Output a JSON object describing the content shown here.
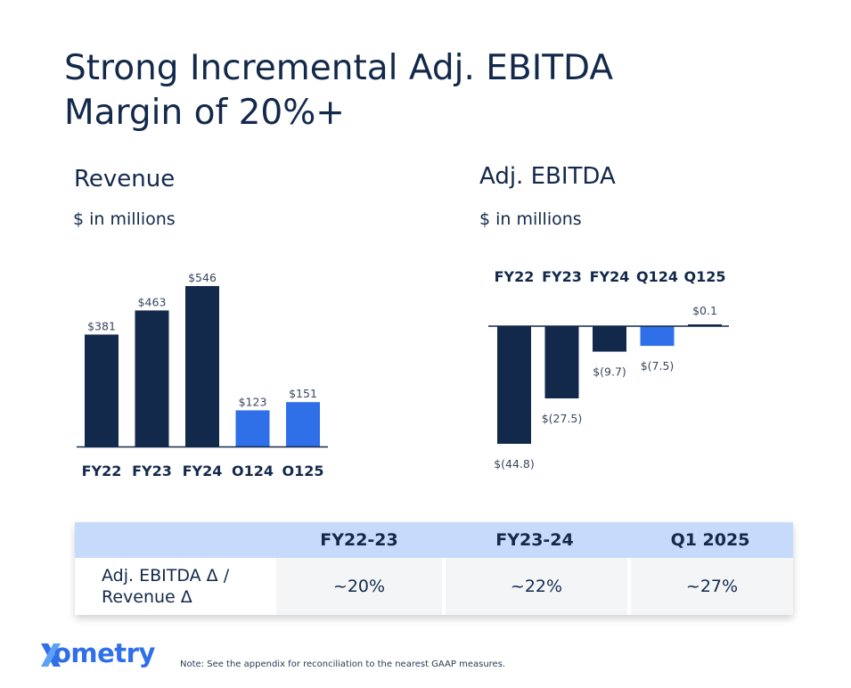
{
  "slide": {
    "title_line1": "Strong Incremental Adj. EBITDA",
    "title_line2": "Margin of 20%+"
  },
  "chart_data": [
    {
      "type": "bar",
      "title": "Revenue",
      "subtitle": "$ in millions",
      "categories": [
        "FY22",
        "FY23",
        "FY24",
        "O124",
        "O125"
      ],
      "values": [
        381,
        463,
        546,
        123,
        151
      ],
      "value_labels": [
        "$381",
        "$463",
        "$546",
        "$123",
        "$151"
      ],
      "colors": [
        "#13294b",
        "#13294b",
        "#13294b",
        "#2f6fe8",
        "#2f6fe8"
      ],
      "ylim": [
        0,
        546
      ]
    },
    {
      "type": "bar",
      "title": "Adj. EBITDA",
      "subtitle": "$ in millions",
      "categories": [
        "FY22",
        "FY23",
        "FY24",
        "Q124",
        "Q125"
      ],
      "values": [
        -44.8,
        -27.5,
        -9.7,
        -7.5,
        0.1
      ],
      "value_labels": [
        "$(44.8)",
        "$(27.5)",
        "$(9.7)",
        "$(7.5)",
        "$0.1"
      ],
      "colors": [
        "#13294b",
        "#13294b",
        "#13294b",
        "#2f6fe8",
        "#13294b"
      ],
      "ylim": [
        -44.8,
        0.1
      ]
    }
  ],
  "table": {
    "headers": [
      "",
      "FY22-23",
      "FY23-24",
      "Q1 2025"
    ],
    "row_label_line1": "Adj. EBITDA Δ /",
    "row_label_line2": "Revenue Δ",
    "values": [
      "~20%",
      "~22%",
      "~27%"
    ]
  },
  "footer": {
    "logo_text": "ometry",
    "logo_color": "#2f6fe8",
    "note": "Note: See the appendix for reconciliation to the nearest GAAP measures."
  }
}
